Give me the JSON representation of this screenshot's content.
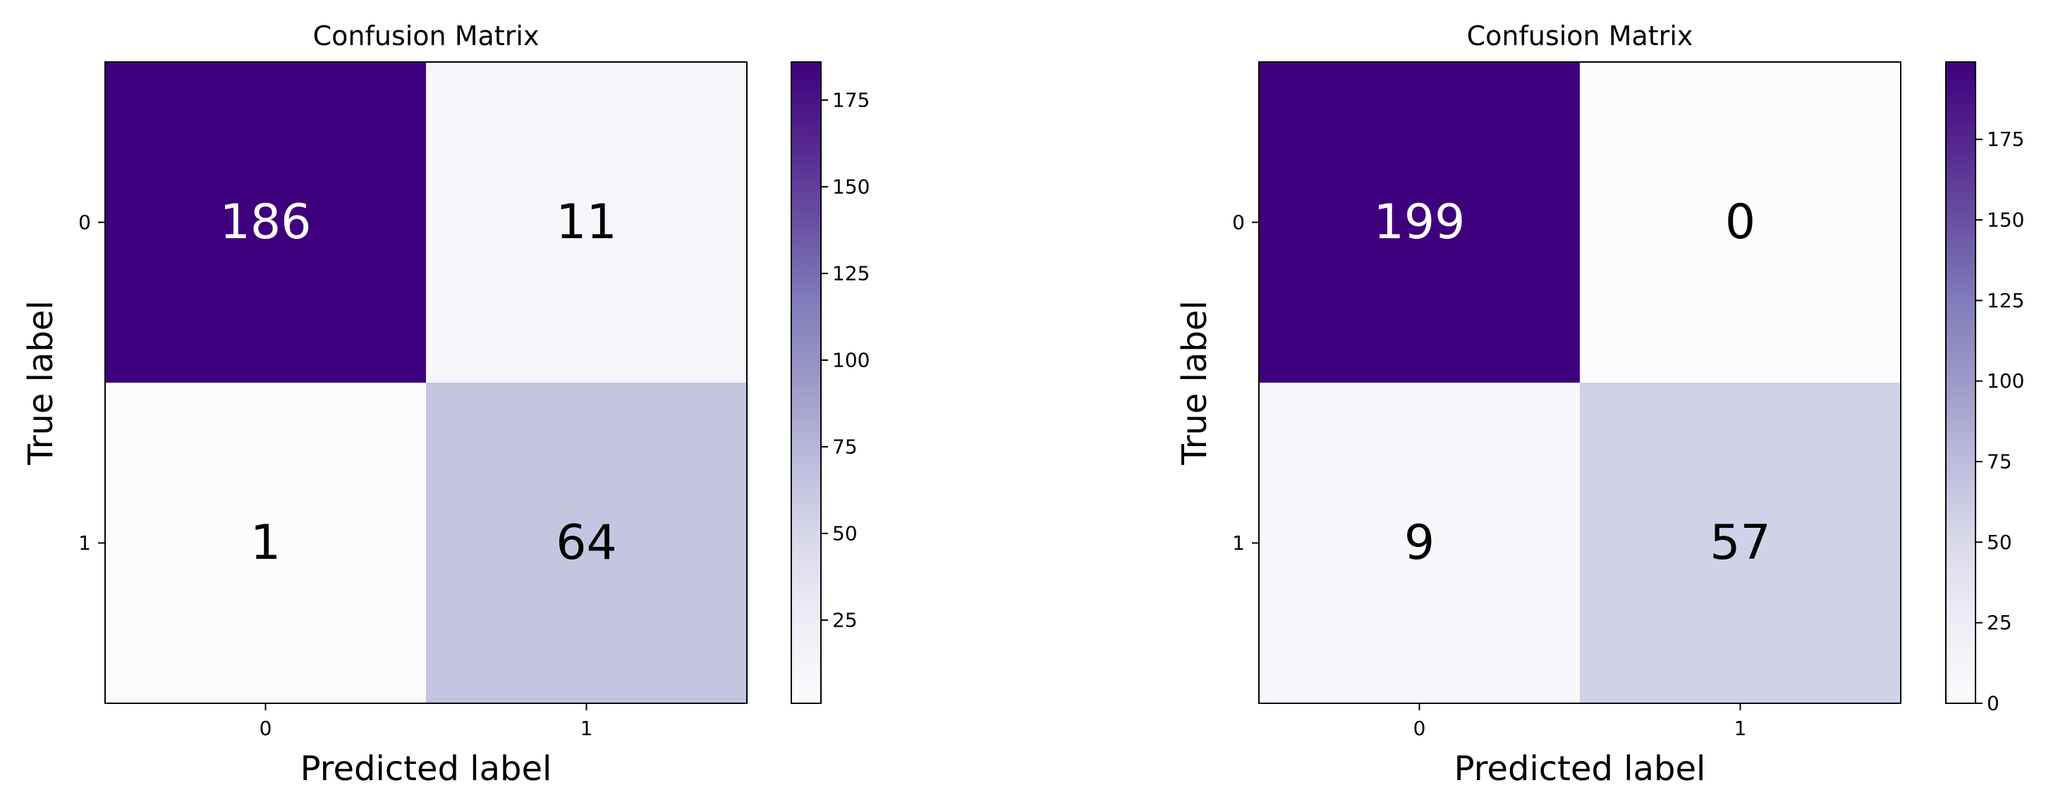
{
  "chart_data": [
    {
      "type": "heatmap",
      "title": "Confusion Matrix",
      "xlabel": "Predicted label",
      "ylabel": "True label",
      "x_categories": [
        "0",
        "1"
      ],
      "y_categories": [
        "0",
        "1"
      ],
      "matrix": [
        [
          186,
          11
        ],
        [
          1,
          64
        ]
      ],
      "colormap": "Purples",
      "colorbar": {
        "min": 1,
        "max": 186,
        "ticks": [
          25,
          50,
          75,
          100,
          125,
          150,
          175
        ]
      }
    },
    {
      "type": "heatmap",
      "title": "Confusion Matrix",
      "xlabel": "Predicted label",
      "ylabel": "True label",
      "x_categories": [
        "0",
        "1"
      ],
      "y_categories": [
        "0",
        "1"
      ],
      "matrix": [
        [
          199,
          0
        ],
        [
          9,
          57
        ]
      ],
      "colormap": "Purples",
      "colorbar": {
        "min": 0,
        "max": 199,
        "ticks": [
          0,
          25,
          50,
          75,
          100,
          125,
          150,
          175
        ]
      }
    }
  ]
}
